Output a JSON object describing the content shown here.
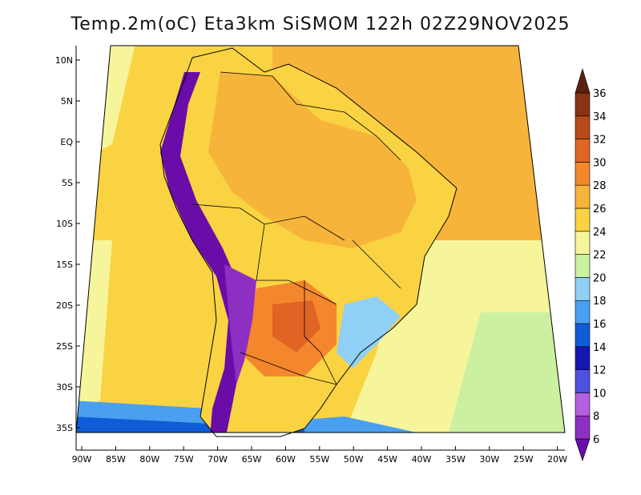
{
  "title": "Temp.2m(oC) Eta3km SiSMOM 122h 02Z29NOV2025",
  "lat_ticks": [
    "10N",
    "5N",
    "EQ",
    "5S",
    "10S",
    "15S",
    "20S",
    "25S",
    "30S",
    "35S"
  ],
  "lon_ticks": [
    "90W",
    "85W",
    "80W",
    "75W",
    "70W",
    "65W",
    "60W",
    "55W",
    "50W",
    "45W",
    "40W",
    "35W",
    "30W",
    "25W",
    "20W"
  ],
  "colorbar": {
    "labels": [
      "6",
      "8",
      "10",
      "12",
      "14",
      "16",
      "18",
      "20",
      "22",
      "24",
      "26",
      "28",
      "30",
      "32",
      "34",
      "36"
    ],
    "colors": [
      "#6a0da8",
      "#8e2fc4",
      "#b35fe0",
      "#5050e0",
      "#1515b0",
      "#0f5cd6",
      "#4aa0f0",
      "#90d0f7",
      "#cbf0a0",
      "#f7f59c",
      "#f9d342",
      "#f7b43b",
      "#f4862c",
      "#e06424",
      "#b84a1a",
      "#8a3214",
      "#5c2010"
    ]
  },
  "colors": {
    "ocean_far": "#f7b43b",
    "ocean_south": "#f7f59c",
    "cold_band": "#4aa0f0",
    "land_warm": "#f9d342",
    "land_hot": "#f4862c",
    "andes": "#6a0da8",
    "border": "#000000"
  }
}
